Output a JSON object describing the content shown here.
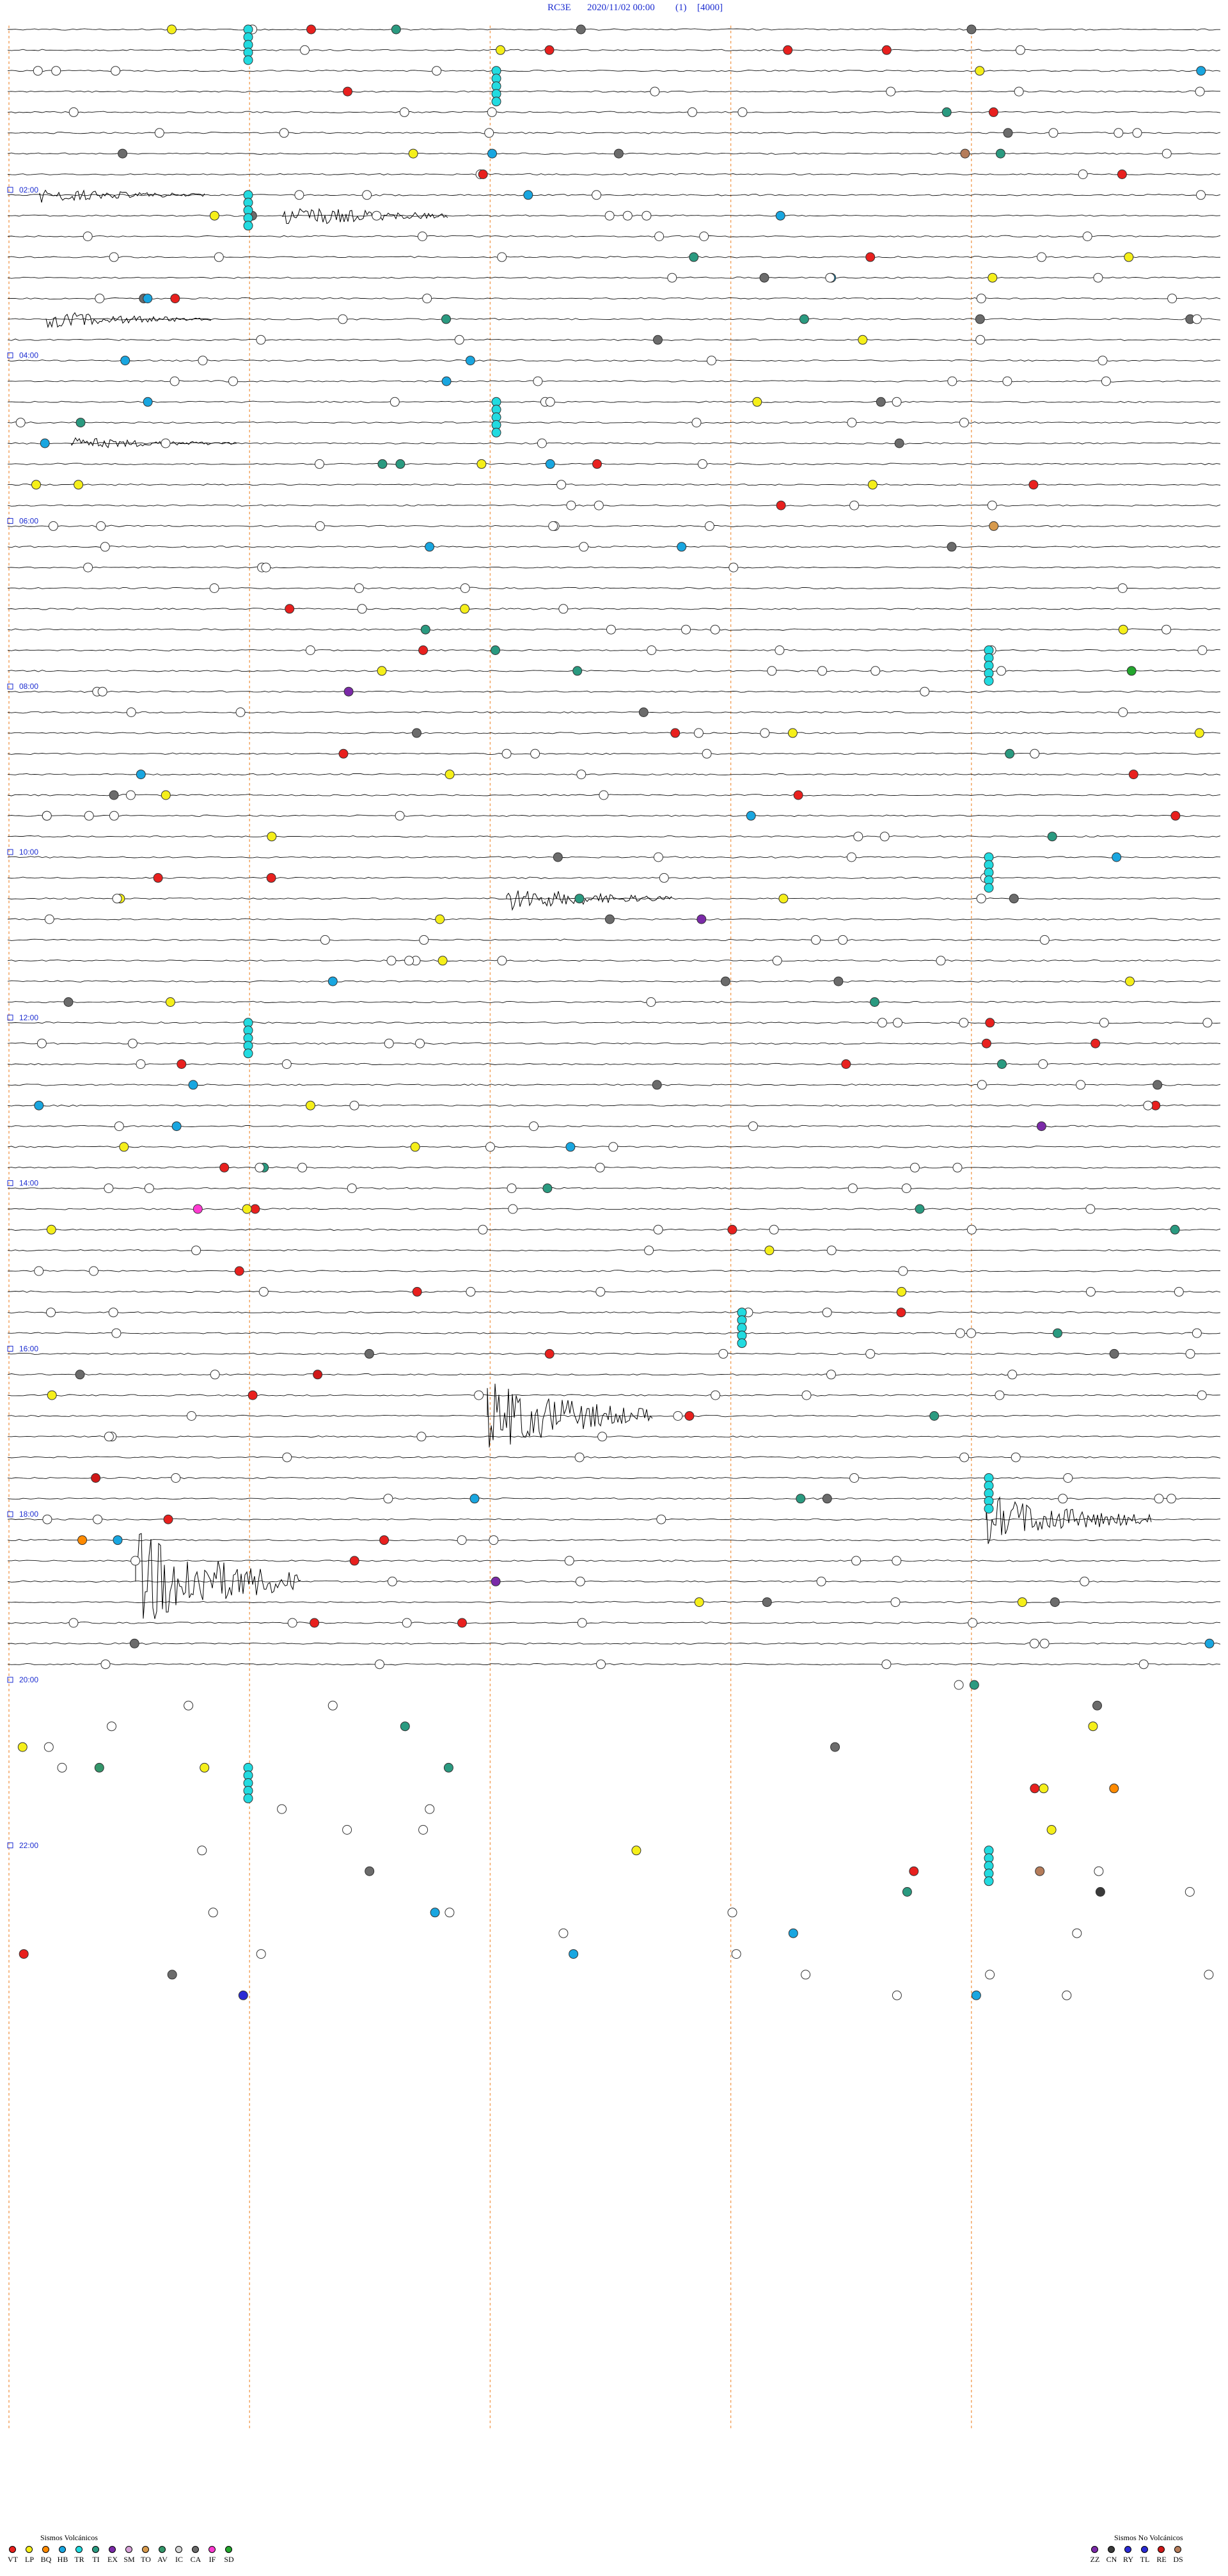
{
  "header": {
    "station": "RC3E",
    "datetime": "2020/11/02 00:00",
    "channel": "(1)",
    "scale": "[4000]"
  },
  "chart_data": {
    "type": "helicorder",
    "title": "RC3E   2020/11/02 00:00   (1)   [4000]",
    "start_time": "2020/11/02 00:00",
    "total_lines": 96,
    "minutes_per_line": 15,
    "signal_lines": 80,
    "hour_labels": [
      "02:00",
      "04:00",
      "06:00",
      "08:00",
      "10:00",
      "12:00",
      "14:00",
      "16:00",
      "18:00",
      "20:00",
      "22:00"
    ],
    "event_colors": {
      "VT": "#e8201e",
      "LP": "#f5ef1a",
      "BQ": "#ff8a00",
      "HB": "#19a6e0",
      "TR": "#22dbe0",
      "TI": "#2a9a80",
      "EX": "#7b2aa8",
      "SM": "#d7a2d8",
      "TO": "#d79a4d",
      "AV": "#33966a",
      "IC": "#d6d6d6",
      "CA": "#6b6b6b",
      "IF": "#ff3bd1",
      "SD": "#23a62d",
      "ZZ": "#7b2aa8",
      "CN": "#3a3a3a",
      "RY": "#2a2ad4",
      "TL": "#2a2ad4",
      "RE": "#d01818",
      "DS": "#b57c5a"
    },
    "events_approx_minutes": {
      "IC": "background (numerous)",
      "TR": "chains on lines near minutes 0, 3, 6, 9, 12",
      "VT": [
        95,
        160,
        330,
        590,
        880,
        990,
        1100,
        1260,
        1330
      ]
    }
  },
  "legend": {
    "volcanic": {
      "title": "Sismos Volcánicos",
      "items": [
        {
          "code": "VT",
          "color": "#e8201e"
        },
        {
          "code": "LP",
          "color": "#f5ef1a"
        },
        {
          "code": "BQ",
          "color": "#ff8a00"
        },
        {
          "code": "HB",
          "color": "#19a6e0"
        },
        {
          "code": "TR",
          "color": "#22dbe0"
        },
        {
          "code": "TI",
          "color": "#2a9a80"
        },
        {
          "code": "EX",
          "color": "#7b2aa8"
        },
        {
          "code": "SM",
          "color": "#d7a2d8"
        },
        {
          "code": "TO",
          "color": "#d79a4d"
        },
        {
          "code": "AV",
          "color": "#33966a"
        },
        {
          "code": "IC",
          "color": "#d6d6d6"
        },
        {
          "code": "CA",
          "color": "#6b6b6b"
        },
        {
          "code": "IF",
          "color": "#ff3bd1"
        },
        {
          "code": "SD",
          "color": "#23a62d"
        }
      ]
    },
    "non_volcanic": {
      "title": "Sismos No Volcánicos",
      "items": [
        {
          "code": "ZZ",
          "color": "#7b2aa8"
        },
        {
          "code": "CN",
          "color": "#3a3a3a"
        },
        {
          "code": "RY",
          "color": "#2a2ad4"
        },
        {
          "code": "TL",
          "color": "#2a2ad4"
        },
        {
          "code": "RE",
          "color": "#d01818"
        },
        {
          "code": "DS",
          "color": "#b57c5a"
        }
      ]
    }
  }
}
